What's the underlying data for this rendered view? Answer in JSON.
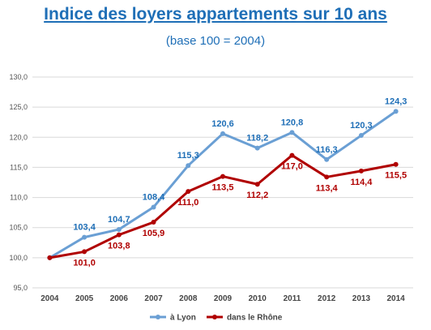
{
  "chart_data": {
    "type": "line",
    "title": "Indice des loyers appartements sur 10 ans",
    "subtitle": "(base 100 = 2004)",
    "categories": [
      "2004",
      "2005",
      "2006",
      "2007",
      "2008",
      "2009",
      "2010",
      "2011",
      "2012",
      "2013",
      "2014"
    ],
    "series": [
      {
        "name": "à Lyon",
        "color": "#6a9fd4",
        "label_color": "#1f6fb7",
        "values": [
          100.0,
          103.4,
          104.7,
          108.4,
          115.3,
          120.6,
          118.2,
          120.8,
          116.3,
          120.3,
          124.3
        ],
        "labels": [
          "",
          "103,4",
          "104,7",
          "108,4",
          "115,3",
          "120,6",
          "118,2",
          "120,8",
          "116,3",
          "120,3",
          "124,3"
        ]
      },
      {
        "name": "dans le Rhône",
        "color": "#b00000",
        "label_color": "#b00000",
        "values": [
          100.0,
          101.0,
          103.8,
          105.9,
          111.0,
          113.5,
          112.2,
          117.0,
          113.4,
          114.4,
          115.5
        ],
        "labels": [
          "",
          "101,0",
          "103,8",
          "105,9",
          "111,0",
          "113,5",
          "112,2",
          "117,0",
          "113,4",
          "114,4",
          "115,5"
        ]
      }
    ],
    "yticks": [
      "95,0",
      "100,0",
      "105,0",
      "110,0",
      "115,0",
      "120,0",
      "125,0",
      "130,0"
    ],
    "ylim": [
      95,
      130
    ],
    "grid": true,
    "legend": "bottom"
  }
}
